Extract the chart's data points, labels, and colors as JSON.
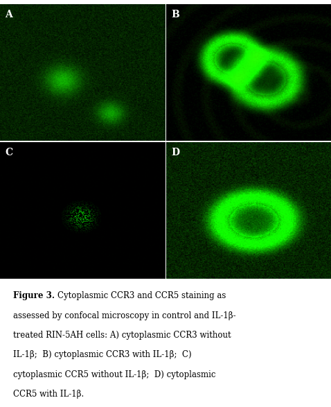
{
  "fig_width": 4.78,
  "fig_height": 5.87,
  "dpi": 100,
  "panel_labels": [
    "A",
    "B",
    "C",
    "D"
  ],
  "label_color": "#ffffff",
  "label_fontsize": 10,
  "border_color": "#ffffff",
  "caption_fontsize": 8.5,
  "seed_A": 42,
  "seed_B": 123,
  "seed_C": 456,
  "seed_D": 789
}
